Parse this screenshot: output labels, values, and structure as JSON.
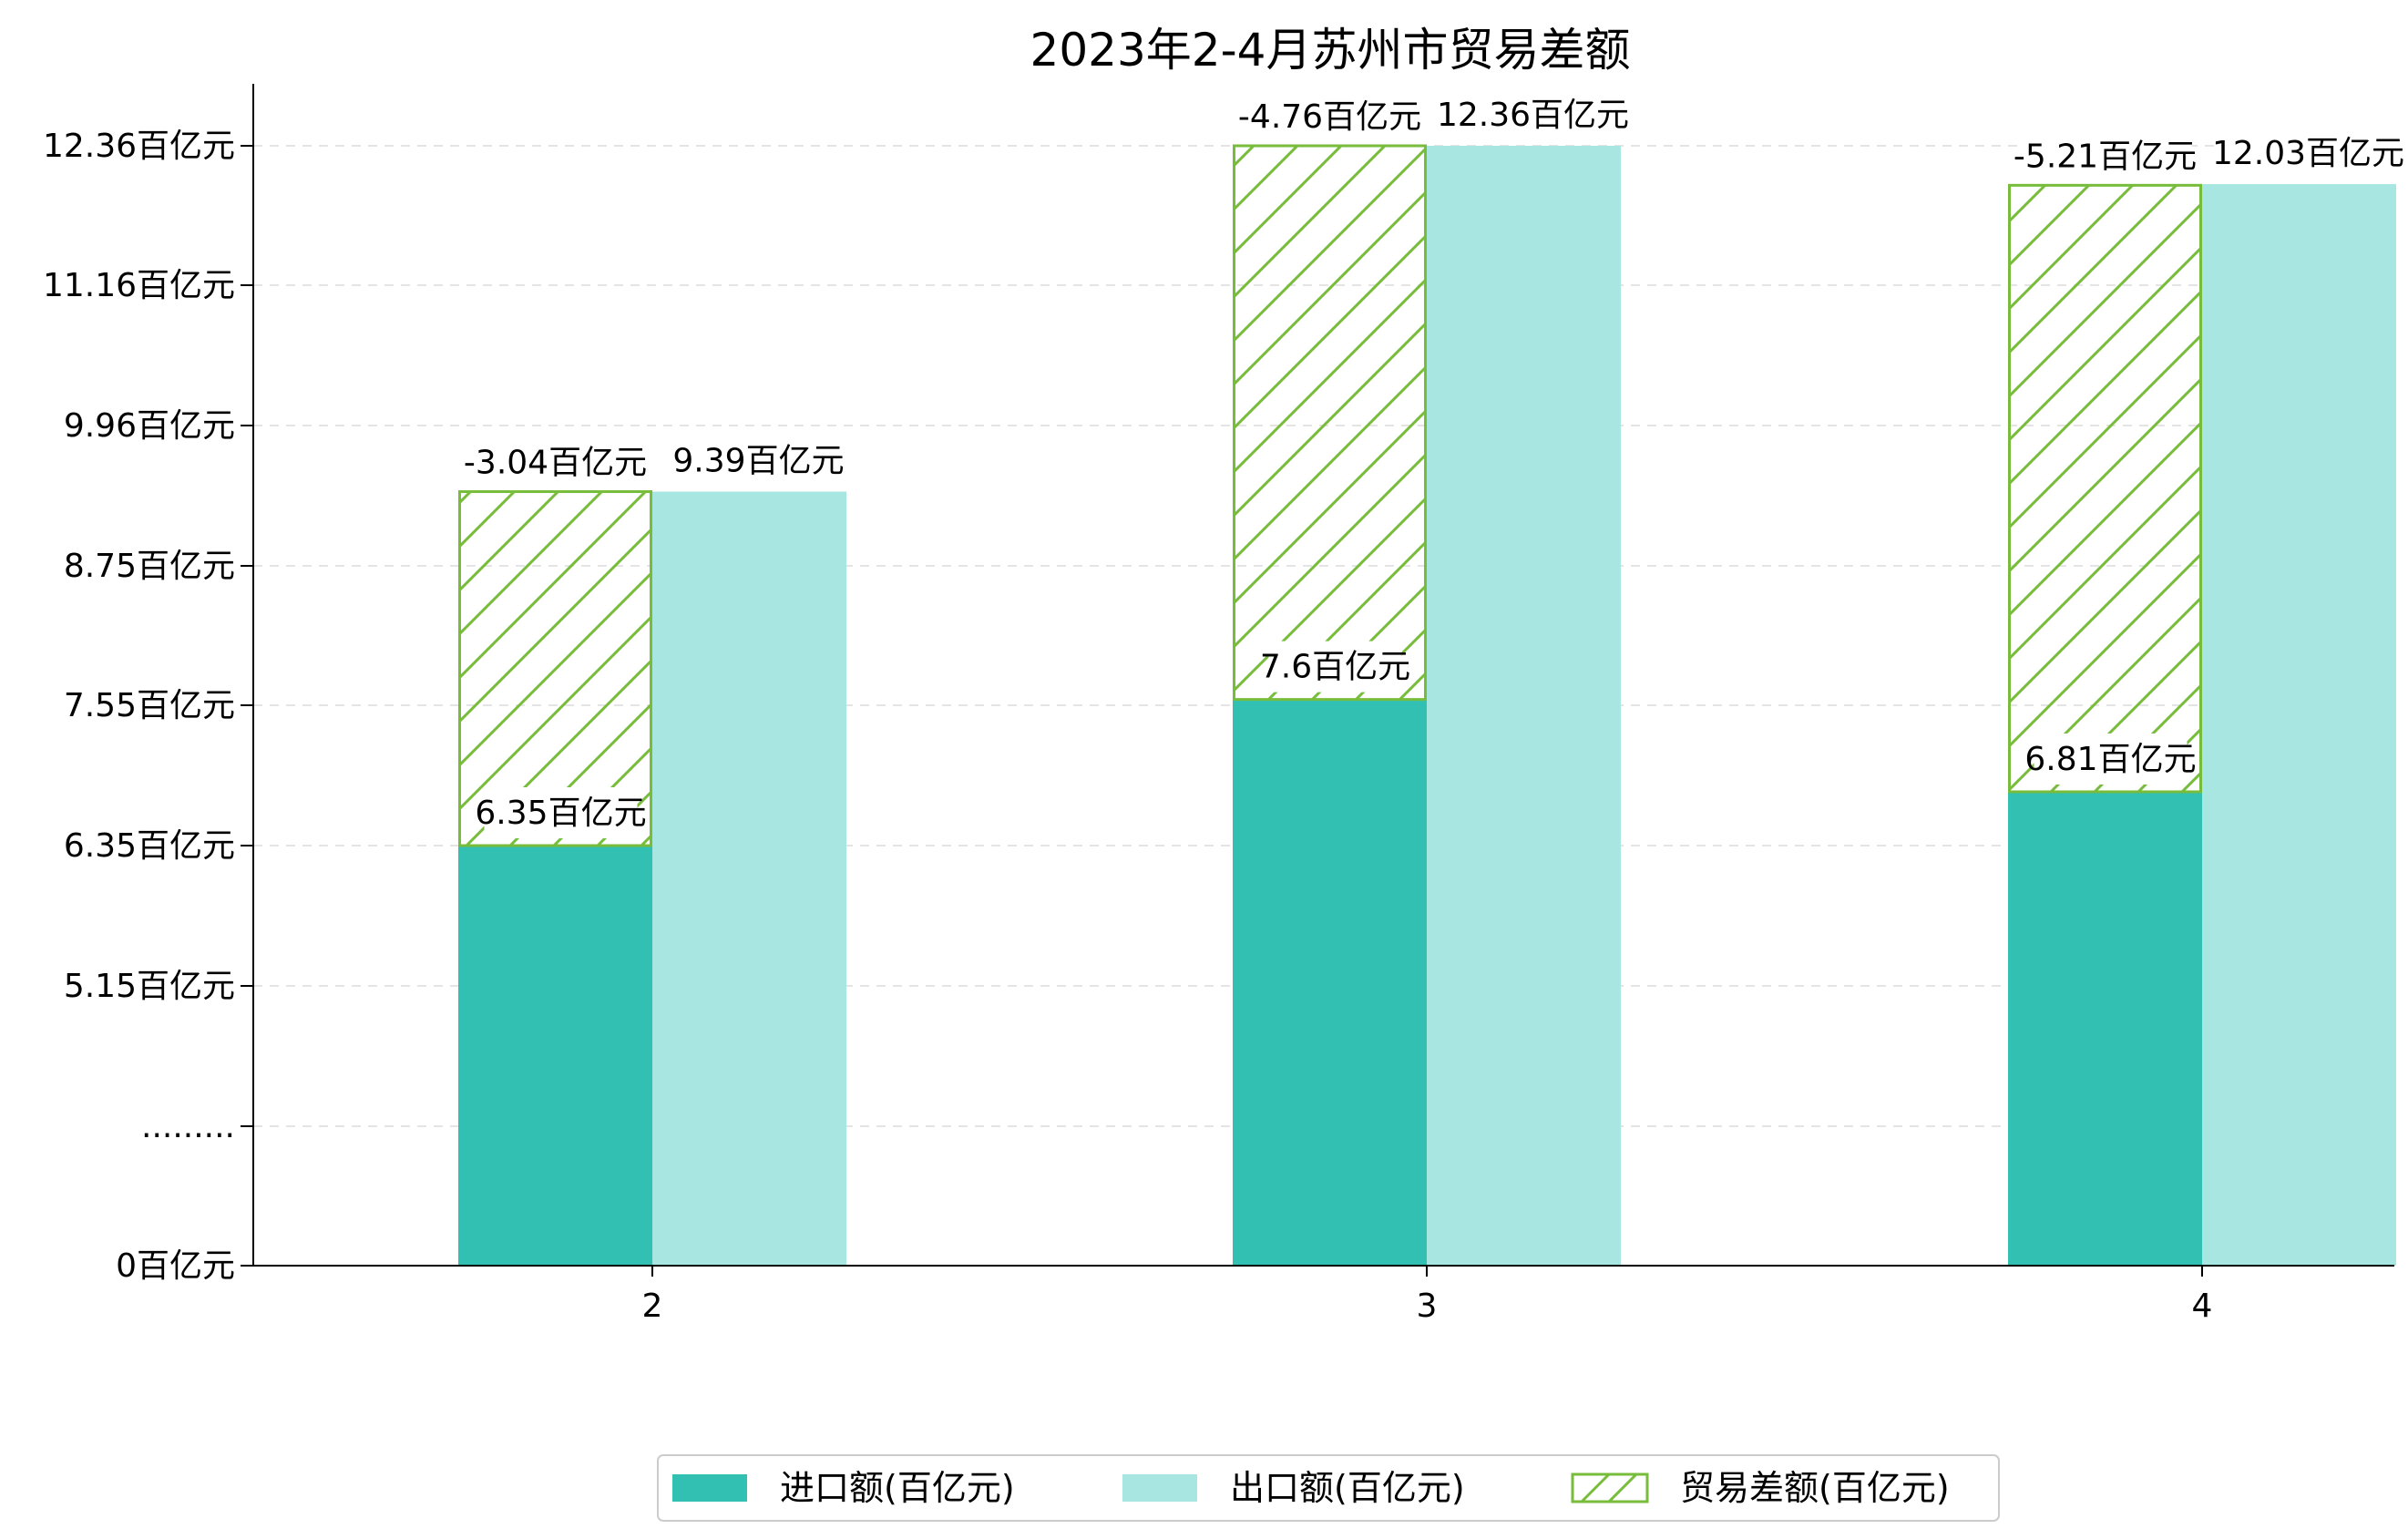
{
  "chart_data": {
    "type": "bar",
    "title": "2023年2-4月苏州市贸易差额",
    "categories": [
      "2",
      "3",
      "4"
    ],
    "series": [
      {
        "name": "进口额(百亿元)",
        "values": [
          6.35,
          7.6,
          6.81
        ],
        "color": "#32c0b3",
        "pattern": "solid"
      },
      {
        "name": "出口额(百亿元)",
        "values": [
          9.39,
          12.36,
          12.03
        ],
        "color": "#a8e6e1",
        "pattern": "solid"
      },
      {
        "name": "贸易差额(百亿元)",
        "values": [
          -3.04,
          -4.76,
          -5.21
        ],
        "color": "#77bd3b",
        "pattern": "hatch"
      }
    ],
    "data_labels": {
      "import": [
        "6.35百亿元",
        "7.6百亿元",
        "6.81百亿元"
      ],
      "export": [
        "9.39百亿元",
        "12.36百亿元",
        "12.03百亿元"
      ],
      "balance": [
        "-3.04百亿元",
        "-4.76百亿元",
        "-5.21百亿元"
      ]
    },
    "yaxis": {
      "ticks": [
        {
          "value": 0,
          "label": "0百亿元"
        },
        {
          "value": 3.95,
          "label": "........."
        },
        {
          "value": 5.15,
          "label": "5.15百亿元"
        },
        {
          "value": 6.35,
          "label": "6.35百亿元"
        },
        {
          "value": 7.55,
          "label": "7.55百亿元"
        },
        {
          "value": 8.75,
          "label": "8.75百亿元"
        },
        {
          "value": 9.96,
          "label": "9.96百亿元"
        },
        {
          "value": 11.16,
          "label": "11.16百亿元"
        },
        {
          "value": 12.36,
          "label": "12.36百亿元"
        }
      ],
      "ylim": [
        0,
        12.36
      ],
      "axis_break": true,
      "grid": true
    },
    "legend_position": "bottom-center"
  }
}
